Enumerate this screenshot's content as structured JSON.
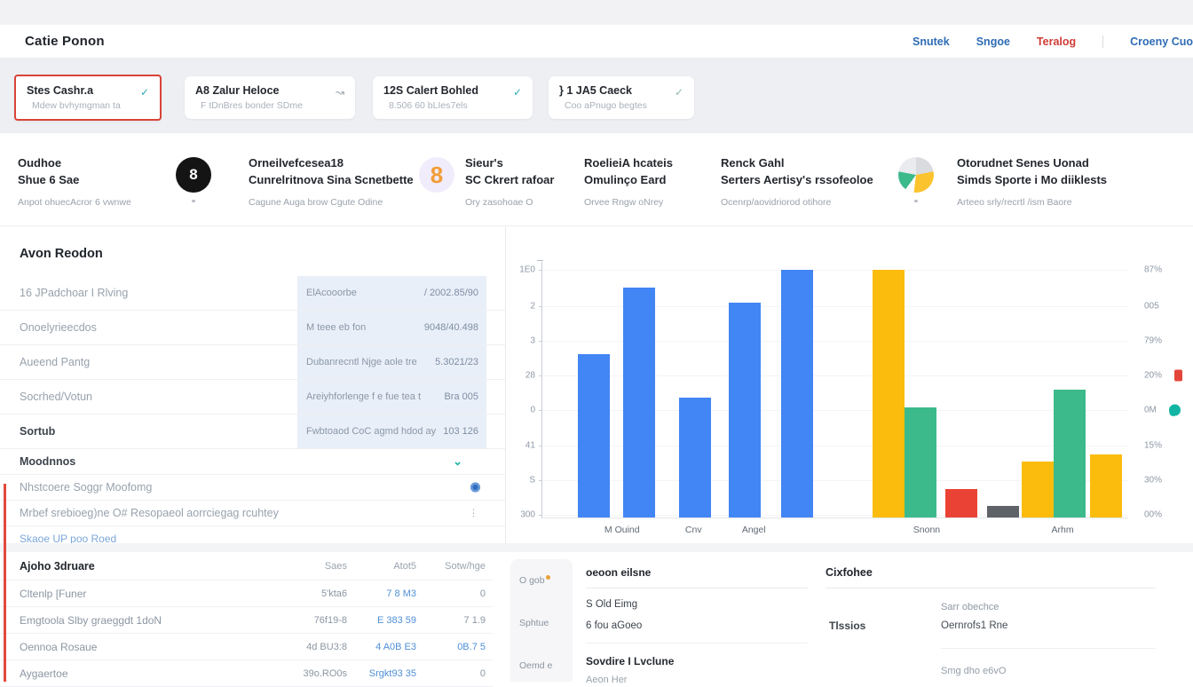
{
  "header": {
    "title": "Catie Ponon",
    "nav": [
      "Snutek",
      "Sngoe",
      "Teralog",
      "Croeny Cuo"
    ]
  },
  "cards": [
    {
      "title": "Stes Cashr.a",
      "subtitle": "Mdew bvhymgman ta",
      "icon": "✓"
    },
    {
      "title": "A8  Zalur Heloce",
      "subtitle": "F tDnBres bonder SDme",
      "icon": "↝"
    },
    {
      "title": "12S  Calert Bohled",
      "subtitle": "8.506 60 bLIes7els",
      "icon": "✓"
    },
    {
      "title": "} 1 JA5 Caeck",
      "subtitle": "Coo aPnugo begtes",
      "icon": "✓"
    }
  ],
  "features": [
    {
      "title1": "Oudhoe",
      "title2": "Shue 6 Sae",
      "subtitle": "Anpot ohuecAcror 6 vwnwe"
    },
    {
      "title1": "Orneilvefcesea18",
      "title2": "Cunrelritnova Sina Scnetbette",
      "subtitle": "Cagune Auga brow Cgute Odine",
      "icon_glyph": "8"
    },
    {
      "title1": "Sieur's",
      "title2": "SC Ckrert rafoar",
      "subtitle": "Ory zasohoae O",
      "icon_glyph": "8"
    },
    {
      "title1": "RoelieiA hcateis",
      "title2": "Omulinço Eard",
      "subtitle": "Orvee Rngw oNrey"
    },
    {
      "title1": "Renck Gahl",
      "title2": "Serters Aertisy's rssofeoloe",
      "subtitle": "Ocenrp/aovidriorod otihore"
    },
    {
      "title1": "Otorudnet Senes Uonad",
      "title2": "Simds Sporte i Mo diiklests",
      "subtitle": "Arteeo srly/recrtl /ism Baore"
    }
  ],
  "left_panel": {
    "title": "Avon Reodon",
    "rows": [
      {
        "label": "16 JPadchoar I Rlving",
        "mid": "ElAcooorbe",
        "value": "/ 2002.85/90"
      },
      {
        "label": "Onoelyrieecdos",
        "mid": "M teee eb fon",
        "value": "9048/40.498"
      },
      {
        "label": "Aueend Pantg",
        "mid": "Dubanrecntl Njge aole tre",
        "value": "5.3021/23"
      },
      {
        "label": "Socrhed/Votun",
        "mid": "Areiyhforlenge f e fue tea t",
        "value": "Bra 005"
      },
      {
        "label": "Sortub",
        "mid": "Fwbtoaod CoC agmd hdod ay",
        "value": "103 126"
      }
    ],
    "expand_label": "Moodnnos",
    "toggle_row": "Nhstcoere Soggr Moofomg",
    "detail_row": "Mrbef srebioeg)ne O# Resopaeol aorrciegag rcuhtey",
    "more_glyph": "⋮",
    "link_label": "Skaoe UP poo Roed"
  },
  "chart_data": {
    "type": "bar",
    "title": "",
    "xlabel": "",
    "ylabel": "",
    "ylim": [
      0,
      100
    ],
    "grid": true,
    "legend_position": "right-axis",
    "axis_rows": [
      {
        "pct": 3,
        "left": "1E0",
        "right": "87%",
        "marker": null
      },
      {
        "pct": 17.5,
        "left": "2",
        "right": "005",
        "marker": null
      },
      {
        "pct": 31,
        "left": "3",
        "right": "79%",
        "marker": null
      },
      {
        "pct": 44.5,
        "left": "28",
        "right": "20%",
        "marker": "red-square"
      },
      {
        "pct": 58,
        "left": "0",
        "right": "0M",
        "marker": "teal-drop"
      },
      {
        "pct": 72,
        "left": "41",
        "right": "15%",
        "marker": null
      },
      {
        "pct": 85.5,
        "left": "S",
        "right": "30%",
        "marker": null
      },
      {
        "pct": 99,
        "left": "300",
        "right": "00%",
        "marker": null
      }
    ],
    "x_ticks": [
      {
        "label": "M Ouind",
        "pos_pct": 13.6
      },
      {
        "label": "Cnv",
        "pos_pct": 25.8
      },
      {
        "label": "Angel",
        "pos_pct": 36.1
      },
      {
        "label": "Snonn",
        "pos_pct": 65.6
      },
      {
        "label": "Arhm",
        "pos_pct": 88.8
      }
    ],
    "bar_width_pct": 5.45,
    "bars": [
      {
        "left_pct": 6.1,
        "value": 64,
        "color": "blue"
      },
      {
        "left_pct": 13.8,
        "value": 90,
        "color": "blue"
      },
      {
        "left_pct": 23.3,
        "value": 47,
        "color": "blue"
      },
      {
        "left_pct": 31.8,
        "value": 84,
        "color": "blue"
      },
      {
        "left_pct": 40.8,
        "value": 97,
        "color": "blue"
      },
      {
        "left_pct": 56.4,
        "value": 97,
        "color": "yellow"
      },
      {
        "left_pct": 61.8,
        "value": 43,
        "color": "green"
      },
      {
        "left_pct": 68.8,
        "value": 11,
        "color": "red"
      },
      {
        "left_pct": 75.9,
        "value": 4.5,
        "color": "gray"
      },
      {
        "left_pct": 81.8,
        "value": 22,
        "color": "yellow"
      },
      {
        "left_pct": 87.3,
        "value": 50,
        "color": "green"
      },
      {
        "left_pct": 93.5,
        "value": 24.5,
        "color": "yellow"
      }
    ],
    "palette": {
      "blue": "#4285f4",
      "yellow": "#fbbc0d",
      "green": "#3dba8c",
      "red": "#ea4335",
      "gray": "#5f6368"
    }
  },
  "bottom_left_table": {
    "title": "Ajoho 3druare",
    "columns": [
      "Saes",
      "Atot5",
      "Sotw/hge"
    ],
    "rows": [
      {
        "label": "Cltenlp [Funer",
        "c1": "5'kta6",
        "c2": "7 8 M3",
        "c3": "0"
      },
      {
        "label": "Emgtoola Slby graeggdt 1doN",
        "c1": "76f19-8",
        "c2": "E 383 59",
        "c3": "7 1.9"
      },
      {
        "label": "Oennoa Rosaue",
        "c1": "4d BU3:8",
        "c2": "4 A0B E3",
        "c3": "0B.7 5"
      },
      {
        "label": "Aygaertoe",
        "c1": "39o.RO0s",
        "c2": "Srgkt93 35",
        "c3": "0"
      }
    ]
  },
  "bottom_middle": {
    "tabs": [
      {
        "label": "O gob"
      },
      {
        "label": "Sphtue"
      },
      {
        "label": "Oemd e"
      }
    ],
    "header": "oeoon eilsne",
    "line1": "S Old Eimg",
    "line2": "6 fou aGoeo",
    "bold_line": "Sovdire I Lvclune",
    "sub_line": "Aeon Her"
  },
  "bottom_right": {
    "header": "Cixfohee",
    "row_label": "Tlssios",
    "line1": "Sarr obechce",
    "line2": "Oernrofs1 Rne",
    "footer": "Smg dho e6vO"
  }
}
